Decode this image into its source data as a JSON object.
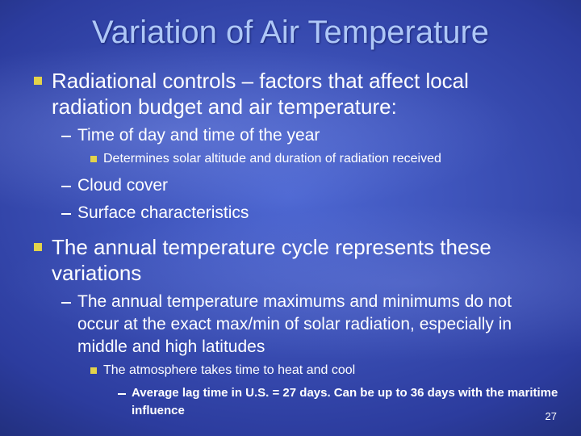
{
  "title": "Variation of Air Temperature",
  "bullets": [
    {
      "level": 1,
      "text": "Radiational controls – factors that affect local radiation budget and air temperature:"
    },
    {
      "level": 2,
      "text": "Time of day and time of the year"
    },
    {
      "level": 3,
      "text": "Determines solar altitude and duration of radiation received"
    },
    {
      "level": 2,
      "text": "Cloud cover"
    },
    {
      "level": 2,
      "text": "Surface characteristics"
    },
    {
      "level": 1,
      "text": "The annual temperature cycle represents these variations"
    },
    {
      "level": 2,
      "text": "The annual temperature maximums and minimums do not occur at the exact max/min of solar radiation, especially in middle and high latitudes"
    },
    {
      "level": 3,
      "text": "The atmosphere takes time to heat and cool"
    },
    {
      "level": 4,
      "text": "Average lag time in U.S. = 27 days.  Can be up to 36 days with the maritime influence"
    }
  ],
  "slide_number": "27"
}
